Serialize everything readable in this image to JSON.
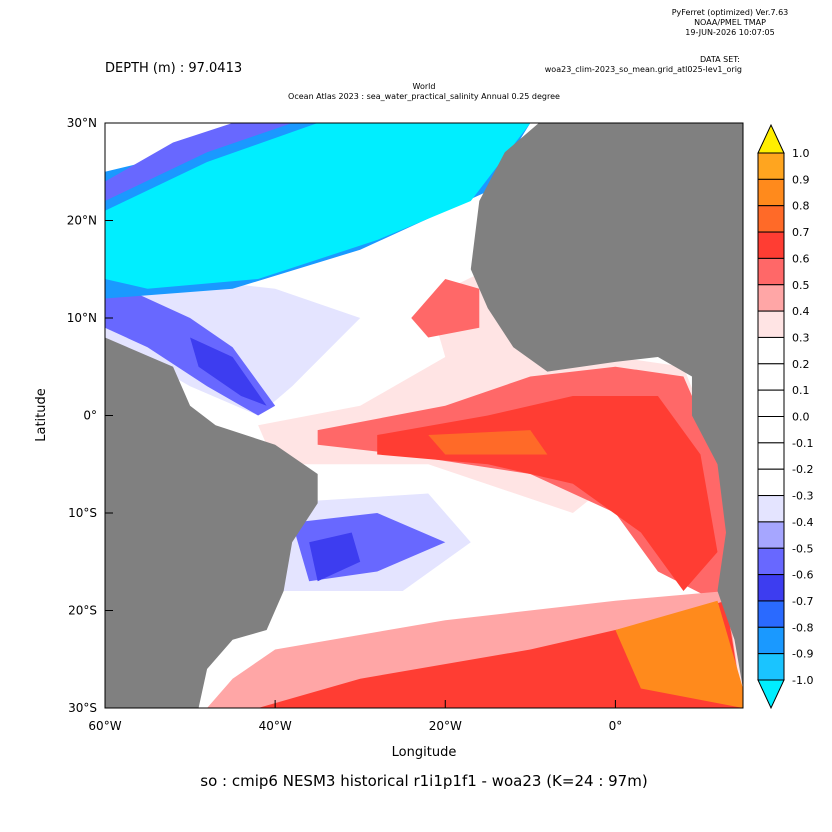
{
  "header": {
    "software": "PyFerret (optimized) Ver.7.63",
    "org": "NOAA/PMEL TMAP",
    "timestamp": "19-JUN-2026 10:07:05",
    "dataset_label": "DATA SET:",
    "dataset": "woa23_clim-2023_so_mean.grid_atl025-lev1_orig",
    "depth": "DEPTH (m) : 97.0413",
    "title_line1": "World",
    "title_line2": "Ocean Atlas 2023 : sea_water_practical_salinity Annual  0.25 degree"
  },
  "chart_data": {
    "type": "contour",
    "xlabel": "Longitude",
    "ylabel": "Latitude",
    "xlim": [
      -60,
      15
    ],
    "ylim": [
      -30,
      30
    ],
    "xticks": [
      {
        "value": -60,
        "label": "60°W"
      },
      {
        "value": -40,
        "label": "40°W"
      },
      {
        "value": -20,
        "label": "20°W"
      },
      {
        "value": 0,
        "label": "0°"
      }
    ],
    "yticks": [
      {
        "value": 30,
        "label": "30°N"
      },
      {
        "value": 20,
        "label": "20°N"
      },
      {
        "value": 10,
        "label": "10°N"
      },
      {
        "value": 0,
        "label": "0°"
      },
      {
        "value": -10,
        "label": "10°S"
      },
      {
        "value": -20,
        "label": "20°S"
      },
      {
        "value": -30,
        "label": "30°S"
      }
    ],
    "colorbar": {
      "levels": [
        {
          "value": 1,
          "label": "1.0"
        },
        0.9,
        0.8,
        0.7,
        0.6,
        0.5,
        0.4,
        0.3,
        0.2,
        0.1,
        {
          "value": 0,
          "label": "0.0"
        },
        -0.1,
        -0.2,
        -0.3,
        -0.4,
        -0.5,
        -0.6,
        -0.7,
        -0.8,
        -0.9,
        {
          "value": -1,
          "label": "-1.0"
        }
      ],
      "colors": [
        "#ffee00",
        "#ffa51f",
        "#ff8a1c",
        "#ff6a28",
        "#ff3d33",
        "#ff6868",
        "#ffa6a6",
        "#ffe4e4",
        "#ffffff",
        "#ffffff",
        "#ffffff",
        "#ffffff",
        "#ffffff",
        "#ffffff",
        "#e4e4ff",
        "#a6a6ff",
        "#6868ff",
        "#3d3df0",
        "#2a6aff",
        "#1a99ff",
        "#1ac4ff",
        "#00eeff"
      ]
    },
    "land_color": "#808080",
    "footer": "so : cmip6 NESM3 historical r1i1p1f1 - woa23  (K=24 : 97m)"
  }
}
